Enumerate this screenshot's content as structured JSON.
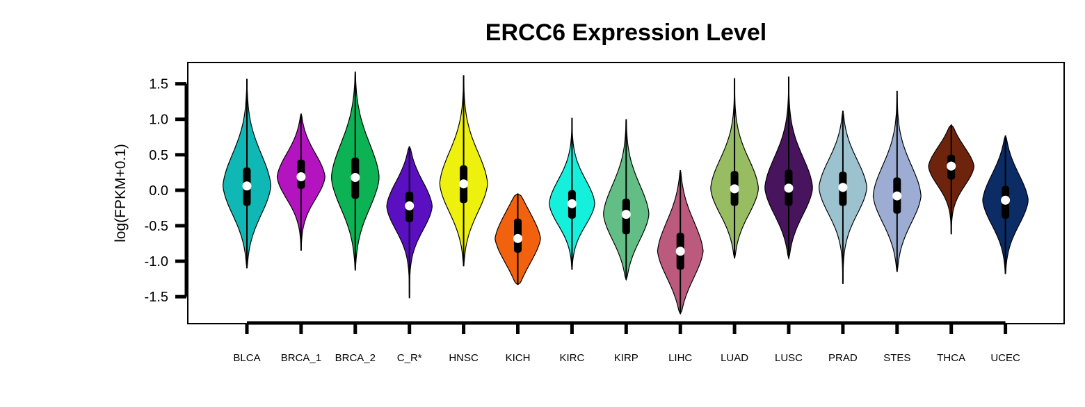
{
  "chart_data": {
    "type": "violin",
    "title": "ERCC6 Expression Level",
    "xlabel": "",
    "ylabel": "log(FPKM+0.1)",
    "yticks": [
      "1.5",
      "1.0",
      "0.5",
      "0.0",
      "-0.5",
      "-1.0",
      "-1.5"
    ],
    "ytick_values": [
      1.5,
      1.0,
      0.5,
      0.0,
      -0.5,
      -1.0,
      -1.5
    ],
    "ylim": [
      -1.88,
      1.8
    ],
    "grid": false,
    "legend": "none",
    "categories": [
      "BLCA",
      "BRCA_1",
      "BRCA_2",
      "C_R*",
      "HNSC",
      "KICH",
      "KIRC",
      "KIRP",
      "LIHC",
      "LUAD",
      "LUSC",
      "PRAD",
      "STES",
      "THCA",
      "UCEC"
    ],
    "series": [
      {
        "category": "BLCA",
        "color": "#0fb8b4",
        "min": -1.1,
        "q1": -0.22,
        "median": 0.06,
        "q3": 0.32,
        "max": 1.57,
        "width": 0.42
      },
      {
        "category": "BRCA_1",
        "color": "#b414c0",
        "min": -0.85,
        "q1": 0.02,
        "median": 0.19,
        "q3": 0.43,
        "max": 1.08,
        "width": 0.42
      },
      {
        "category": "BRCA_2",
        "color": "#0cb254",
        "min": -1.13,
        "q1": -0.12,
        "median": 0.18,
        "q3": 0.46,
        "max": 1.67,
        "width": 0.42
      },
      {
        "category": "C_R*",
        "color": "#5a10c0",
        "min": -1.52,
        "q1": -0.45,
        "median": -0.22,
        "q3": -0.02,
        "max": 0.62,
        "width": 0.4
      },
      {
        "category": "HNSC",
        "color": "#eef00e",
        "min": -1.07,
        "q1": -0.18,
        "median": 0.09,
        "q3": 0.35,
        "max": 1.62,
        "width": 0.42
      },
      {
        "category": "KICH",
        "color": "#f2620e",
        "min": -1.33,
        "q1": -0.88,
        "median": -0.68,
        "q3": -0.4,
        "max": -0.05,
        "width": 0.4
      },
      {
        "category": "KIRC",
        "color": "#14f0dc",
        "min": -1.12,
        "q1": -0.4,
        "median": -0.19,
        "q3": 0.0,
        "max": 1.02,
        "width": 0.4
      },
      {
        "category": "KIRP",
        "color": "#62be84",
        "min": -1.26,
        "q1": -0.62,
        "median": -0.34,
        "q3": -0.12,
        "max": 1.0,
        "width": 0.4
      },
      {
        "category": "LIHC",
        "color": "#bc5a7e",
        "min": -1.74,
        "q1": -1.12,
        "median": -0.86,
        "q3": -0.6,
        "max": 0.28,
        "width": 0.4
      },
      {
        "category": "LUAD",
        "color": "#98bc62",
        "min": -0.96,
        "q1": -0.22,
        "median": 0.02,
        "q3": 0.27,
        "max": 1.58,
        "width": 0.42
      },
      {
        "category": "LUSC",
        "color": "#48145e",
        "min": -0.96,
        "q1": -0.22,
        "median": 0.03,
        "q3": 0.29,
        "max": 1.6,
        "width": 0.42
      },
      {
        "category": "PRAD",
        "color": "#9cc2d0",
        "min": -1.32,
        "q1": -0.22,
        "median": 0.04,
        "q3": 0.26,
        "max": 1.12,
        "width": 0.42
      },
      {
        "category": "STES",
        "color": "#9cacd2",
        "min": -1.15,
        "q1": -0.33,
        "median": -0.08,
        "q3": 0.18,
        "max": 1.4,
        "width": 0.42
      },
      {
        "category": "THCA",
        "color": "#6e240c",
        "min": -0.62,
        "q1": 0.15,
        "median": 0.34,
        "q3": 0.5,
        "max": 0.92,
        "width": 0.4
      },
      {
        "category": "UCEC",
        "color": "#0c2c66",
        "min": -1.18,
        "q1": -0.4,
        "median": -0.14,
        "q3": 0.06,
        "max": 0.77,
        "width": 0.4
      }
    ]
  }
}
